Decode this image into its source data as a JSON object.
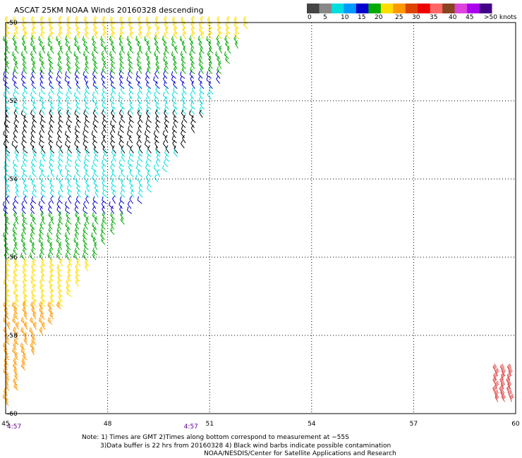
{
  "title": "ASCAT 25KM NOAA Winds 20160328 descending",
  "legend": {
    "labels": [
      "0",
      "5",
      "10",
      "15",
      "20",
      "25",
      "30",
      "35",
      "40",
      "45",
      ">50 knots"
    ],
    "colors": [
      "#444444",
      "#888888",
      "#00dddd",
      "#0099ff",
      "#0000cc",
      "#00aa00",
      "#ffdd00",
      "#ff9900",
      "#dd4400",
      "#ee0000",
      "#ff6666",
      "#884422",
      "#dd44dd",
      "#aa00ee",
      "#440088"
    ]
  },
  "notes": {
    "line1": "Note: 1) Times are GMT 2)Times along bottom correspond to measurement at −55S",
    "line2": "3)Data buffer is 22 hrs from 20160328 4) Black wind barbs indicate possible contamination",
    "line3": "NOAA/NESDIS/Center for Satellite Applications and Research"
  },
  "chart_data": {
    "type": "scatter",
    "title": "ASCAT 25KM NOAA Winds 20160328 descending",
    "xlim": [
      45,
      60
    ],
    "ylim": [
      -60,
      -50
    ],
    "x_ticks": [
      45,
      48,
      51,
      54,
      57,
      60
    ],
    "x_tick_labels": [
      "45",
      "48",
      "51",
      "54",
      "57",
      "60"
    ],
    "y_ticks": [
      -50,
      -52,
      -54,
      -56,
      -58,
      -60
    ],
    "y_tick_labels": [
      "-50",
      "-52",
      "-54",
      "-56",
      "-58",
      "-60"
    ],
    "time_labels": [
      {
        "lon": 45,
        "label": "4:57"
      },
      {
        "lon": 50.2,
        "label": "4:57"
      }
    ],
    "grid": true,
    "swath_edge": [
      [
        52.4,
        -50
      ],
      [
        51.9,
        -50.8
      ],
      [
        51.3,
        -51.8
      ],
      [
        50.7,
        -52.8
      ],
      [
        50.0,
        -53.7
      ],
      [
        49.2,
        -54.6
      ],
      [
        48.2,
        -55.6
      ],
      [
        47.3,
        -56.8
      ],
      [
        46.3,
        -58.0
      ],
      [
        45.6,
        -59.2
      ],
      [
        45.2,
        -60
      ]
    ],
    "wind_bands": [
      {
        "lat_from": -50.0,
        "lat_to": -50.5,
        "color": "#ffdd00",
        "knots": 22
      },
      {
        "lat_from": -50.5,
        "lat_to": -51.4,
        "color": "#00aa00",
        "knots": 17
      },
      {
        "lat_from": -51.4,
        "lat_to": -51.8,
        "color": "#0000cc",
        "knots": 14
      },
      {
        "lat_from": -51.8,
        "lat_to": -52.4,
        "color": "#00dddd",
        "knots": 11
      },
      {
        "lat_from": -52.4,
        "lat_to": -53.4,
        "color": "#000000",
        "knots": 10
      },
      {
        "lat_from": -53.4,
        "lat_to": -54.6,
        "color": "#00dddd",
        "knots": 11
      },
      {
        "lat_from": -54.6,
        "lat_to": -55.0,
        "color": "#0000cc",
        "knots": 14
      },
      {
        "lat_from": -55.0,
        "lat_to": -56.2,
        "color": "#00aa00",
        "knots": 18
      },
      {
        "lat_from": -56.2,
        "lat_to": -57.3,
        "color": "#ffdd00",
        "knots": 22
      },
      {
        "lat_from": -57.3,
        "lat_to": -60.0,
        "color": "#ff9900",
        "knots": 27
      }
    ],
    "isolated_barbs": {
      "lon_from": 59.4,
      "lon_to": 60.0,
      "lat_from": -59.7,
      "lat_to": -58.9,
      "color": "#dd4444",
      "knots": 32
    }
  }
}
